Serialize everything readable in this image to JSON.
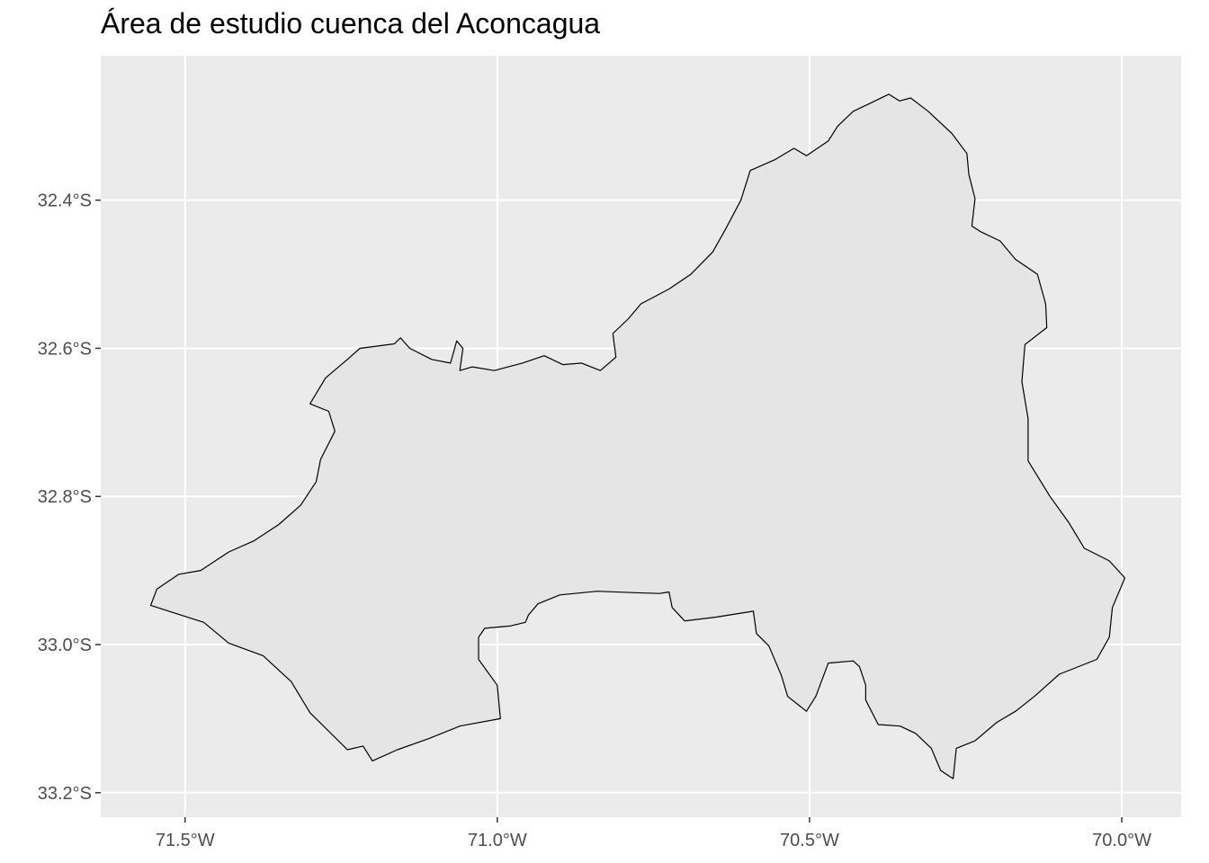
{
  "title": "Área de estudio cuenca del Aconcagua",
  "map": {
    "panel_background": "#ebebeb",
    "grid_color": "#ffffff",
    "polygon_fill": "#e5e5e5",
    "polygon_stroke": "#000000",
    "x_range": [
      -71.635,
      -69.905
    ],
    "y_range": [
      -33.233,
      -32.205
    ],
    "x_ticks": [
      {
        "value": -71.5,
        "label": "71.5°W"
      },
      {
        "value": -71.0,
        "label": "71.0°W"
      },
      {
        "value": -70.5,
        "label": "70.5°W"
      },
      {
        "value": -70.0,
        "label": "70.0°W"
      }
    ],
    "y_ticks": [
      {
        "value": -32.4,
        "label": "32.4°S"
      },
      {
        "value": -32.6,
        "label": "32.6°S"
      },
      {
        "value": -32.8,
        "label": "32.8°S"
      },
      {
        "value": -33.0,
        "label": "33.0°S"
      },
      {
        "value": -33.2,
        "label": "33.2°S"
      }
    ],
    "boundary": [
      [
        -70.373,
        -32.257
      ],
      [
        -70.356,
        -32.266
      ],
      [
        -70.338,
        -32.262
      ],
      [
        -70.31,
        -32.28
      ],
      [
        -70.272,
        -32.31
      ],
      [
        -70.248,
        -32.337
      ],
      [
        -70.245,
        -32.365
      ],
      [
        -70.235,
        -32.398
      ],
      [
        -70.24,
        -32.435
      ],
      [
        -70.225,
        -32.443
      ],
      [
        -70.195,
        -32.455
      ],
      [
        -70.17,
        -32.48
      ],
      [
        -70.135,
        -32.5
      ],
      [
        -70.122,
        -32.54
      ],
      [
        -70.12,
        -32.572
      ],
      [
        -70.155,
        -32.595
      ],
      [
        -70.16,
        -32.645
      ],
      [
        -70.15,
        -32.695
      ],
      [
        -70.15,
        -32.752
      ],
      [
        -70.115,
        -32.8
      ],
      [
        -70.085,
        -32.835
      ],
      [
        -70.06,
        -32.87
      ],
      [
        -70.02,
        -32.887
      ],
      [
        -69.995,
        -32.91
      ],
      [
        -70.015,
        -32.95
      ],
      [
        -70.02,
        -32.99
      ],
      [
        -70.04,
        -33.02
      ],
      [
        -70.1,
        -33.04
      ],
      [
        -70.14,
        -33.07
      ],
      [
        -70.17,
        -33.09
      ],
      [
        -70.2,
        -33.105
      ],
      [
        -70.235,
        -33.13
      ],
      [
        -70.265,
        -33.14
      ],
      [
        -70.27,
        -33.181
      ],
      [
        -70.29,
        -33.17
      ],
      [
        -70.305,
        -33.14
      ],
      [
        -70.33,
        -33.12
      ],
      [
        -70.355,
        -33.11
      ],
      [
        -70.39,
        -33.108
      ],
      [
        -70.41,
        -33.075
      ],
      [
        -70.41,
        -33.055
      ],
      [
        -70.42,
        -33.03
      ],
      [
        -70.43,
        -33.022
      ],
      [
        -70.47,
        -33.025
      ],
      [
        -70.49,
        -33.07
      ],
      [
        -70.505,
        -33.09
      ],
      [
        -70.535,
        -33.07
      ],
      [
        -70.545,
        -33.042
      ],
      [
        -70.565,
        -33.002
      ],
      [
        -70.585,
        -32.985
      ],
      [
        -70.59,
        -32.955
      ],
      [
        -70.65,
        -32.963
      ],
      [
        -70.7,
        -32.968
      ],
      [
        -70.72,
        -32.95
      ],
      [
        -70.725,
        -32.929
      ],
      [
        -70.74,
        -32.931
      ],
      [
        -70.78,
        -32.93
      ],
      [
        -70.84,
        -32.928
      ],
      [
        -70.9,
        -32.933
      ],
      [
        -70.935,
        -32.945
      ],
      [
        -70.95,
        -32.96
      ],
      [
        -70.955,
        -32.97
      ],
      [
        -70.98,
        -32.975
      ],
      [
        -71.02,
        -32.978
      ],
      [
        -71.03,
        -32.99
      ],
      [
        -71.03,
        -33.02
      ],
      [
        -71.0,
        -33.055
      ],
      [
        -70.995,
        -33.1
      ],
      [
        -71.06,
        -33.11
      ],
      [
        -71.11,
        -33.127
      ],
      [
        -71.16,
        -33.142
      ],
      [
        -71.2,
        -33.157
      ],
      [
        -71.215,
        -33.137
      ],
      [
        -71.24,
        -33.142
      ],
      [
        -71.3,
        -33.092
      ],
      [
        -71.33,
        -33.05
      ],
      [
        -71.375,
        -33.015
      ],
      [
        -71.43,
        -32.998
      ],
      [
        -71.47,
        -32.97
      ],
      [
        -71.555,
        -32.947
      ],
      [
        -71.545,
        -32.925
      ],
      [
        -71.51,
        -32.905
      ],
      [
        -71.475,
        -32.9
      ],
      [
        -71.43,
        -32.875
      ],
      [
        -71.39,
        -32.86
      ],
      [
        -71.35,
        -32.838
      ],
      [
        -71.315,
        -32.812
      ],
      [
        -71.29,
        -32.78
      ],
      [
        -71.283,
        -32.75
      ],
      [
        -71.26,
        -32.712
      ],
      [
        -71.27,
        -32.685
      ],
      [
        -71.3,
        -32.675
      ],
      [
        -71.275,
        -32.64
      ],
      [
        -71.24,
        -32.615
      ],
      [
        -71.22,
        -32.6
      ],
      [
        -71.165,
        -32.594
      ],
      [
        -71.155,
        -32.586
      ],
      [
        -71.14,
        -32.6
      ],
      [
        -71.105,
        -32.615
      ],
      [
        -71.075,
        -32.62
      ],
      [
        -71.065,
        -32.59
      ],
      [
        -71.055,
        -32.6
      ],
      [
        -71.06,
        -32.63
      ],
      [
        -71.04,
        -32.625
      ],
      [
        -71.005,
        -32.63
      ],
      [
        -70.96,
        -32.62
      ],
      [
        -70.925,
        -32.61
      ],
      [
        -70.895,
        -32.622
      ],
      [
        -70.865,
        -32.62
      ],
      [
        -70.835,
        -32.63
      ],
      [
        -70.81,
        -32.612
      ],
      [
        -70.815,
        -32.58
      ],
      [
        -70.79,
        -32.56
      ],
      [
        -70.77,
        -32.54
      ],
      [
        -70.725,
        -32.52
      ],
      [
        -70.69,
        -32.5
      ],
      [
        -70.655,
        -32.47
      ],
      [
        -70.635,
        -32.44
      ],
      [
        -70.61,
        -32.4
      ],
      [
        -70.595,
        -32.36
      ],
      [
        -70.555,
        -32.345
      ],
      [
        -70.525,
        -32.33
      ],
      [
        -70.505,
        -32.34
      ],
      [
        -70.47,
        -32.32
      ],
      [
        -70.455,
        -32.3
      ],
      [
        -70.43,
        -32.28
      ],
      [
        -70.405,
        -32.27
      ]
    ]
  }
}
